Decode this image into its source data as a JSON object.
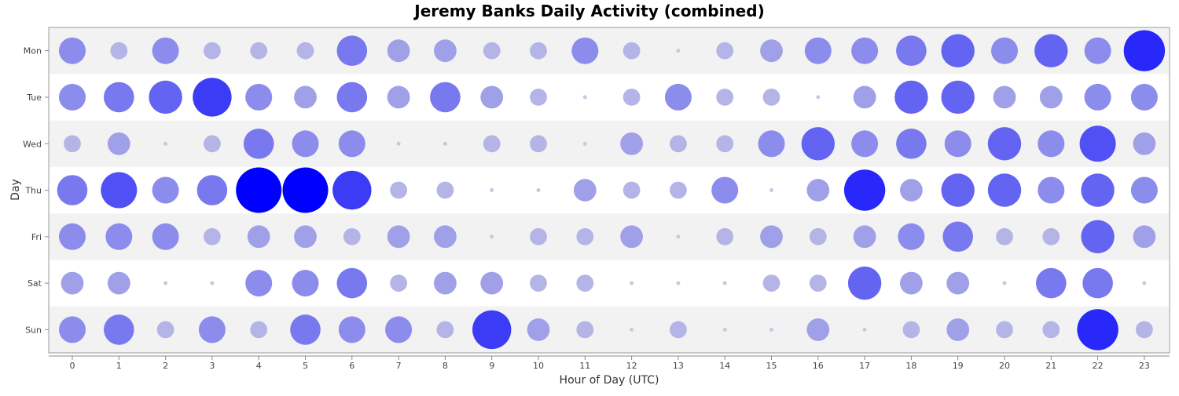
{
  "chart_data": {
    "type": "scatter",
    "title": "Jeremy Banks Daily Activity (combined)",
    "xlabel": "Hour of Day (UTC)",
    "ylabel": "Day",
    "x_categories": [
      "0",
      "1",
      "2",
      "3",
      "4",
      "5",
      "6",
      "7",
      "8",
      "9",
      "10",
      "11",
      "12",
      "13",
      "14",
      "15",
      "16",
      "17",
      "18",
      "19",
      "20",
      "21",
      "22",
      "23"
    ],
    "y_categories": [
      "Mon",
      "Tue",
      "Wed",
      "Thu",
      "Fri",
      "Sat",
      "Sun"
    ],
    "value_scale_max": 10,
    "grid": false,
    "colors": {
      "low": "#c8c8e4",
      "high": "#0000ff",
      "band": "#f2f2f2",
      "plot_border": "#999999"
    },
    "series": [
      {
        "day": "Mon",
        "values": [
          3,
          1,
          3,
          1,
          1,
          1,
          4,
          2,
          2,
          1,
          1,
          3,
          1,
          0,
          1,
          2,
          3,
          3,
          4,
          5,
          3,
          5,
          3,
          8
        ]
      },
      {
        "day": "Tue",
        "values": [
          3,
          4,
          5,
          7,
          3,
          2,
          4,
          2,
          4,
          2,
          1,
          0,
          1,
          3,
          1,
          1,
          0,
          2,
          5,
          5,
          2,
          2,
          3,
          3
        ]
      },
      {
        "day": "Wed",
        "values": [
          1,
          2,
          0,
          1,
          4,
          3,
          3,
          0,
          0,
          1,
          1,
          0,
          2,
          1,
          1,
          3,
          5,
          3,
          4,
          3,
          5,
          3,
          6,
          2
        ]
      },
      {
        "day": "Thu",
        "values": [
          4,
          6,
          3,
          4,
          10,
          10,
          7,
          1,
          1,
          0,
          0,
          2,
          1,
          1,
          3,
          0,
          2,
          8,
          2,
          5,
          5,
          3,
          5,
          3
        ]
      },
      {
        "day": "Fri",
        "values": [
          3,
          3,
          3,
          1,
          2,
          2,
          1,
          2,
          2,
          0,
          1,
          1,
          2,
          0,
          1,
          2,
          1,
          2,
          3,
          4,
          1,
          1,
          5,
          2
        ]
      },
      {
        "day": "Sat",
        "values": [
          2,
          2,
          0,
          0,
          3,
          3,
          4,
          1,
          2,
          2,
          1,
          1,
          0,
          0,
          0,
          1,
          1,
          5,
          2,
          2,
          0,
          4,
          4,
          0
        ]
      },
      {
        "day": "Sun",
        "values": [
          3,
          4,
          1,
          3,
          1,
          4,
          3,
          3,
          1,
          7,
          2,
          1,
          0,
          1,
          0,
          0,
          2,
          0,
          1,
          2,
          1,
          1,
          8,
          1
        ]
      }
    ]
  }
}
